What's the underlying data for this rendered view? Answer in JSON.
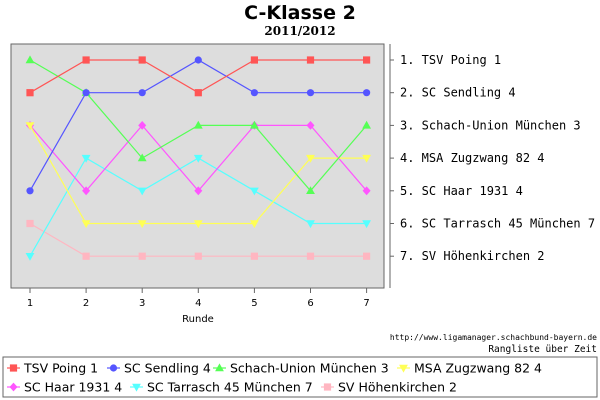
{
  "chart_data": {
    "type": "line",
    "title": "C-Klasse 2",
    "subtitle": "2011/2012",
    "xlabel": "Runde",
    "ylabel": "",
    "x": [
      1,
      2,
      3,
      4,
      5,
      6,
      7
    ],
    "x_ticks": [
      "1",
      "2",
      "3",
      "4",
      "5",
      "6",
      "7"
    ],
    "ylim": [
      1,
      7
    ],
    "y_inverted": true,
    "grid": false,
    "legend_position": "bottom",
    "rank_labels": [
      "1. TSV Poing 1",
      "2. SC Sendling 4",
      "3. Schach-Union München 3",
      "4. MSA Zugzwang 82 4",
      "5. SC Haar 1931 4",
      "6. SC Tarrasch 45 München 7",
      "7. SV Höhenkirchen 2"
    ],
    "series": [
      {
        "name": "TSV Poing 1",
        "color": "#ff5555",
        "marker": "square",
        "values": [
          2,
          1,
          1,
          2,
          1,
          1,
          1
        ]
      },
      {
        "name": "SC Sendling 4",
        "color": "#5555ff",
        "marker": "circle",
        "values": [
          5,
          2,
          2,
          1,
          2,
          2,
          2
        ]
      },
      {
        "name": "Schach-Union München 3",
        "color": "#55ff55",
        "marker": "triangle-up",
        "values": [
          1,
          2,
          4,
          3,
          3,
          5,
          3
        ]
      },
      {
        "name": "MSA Zugzwang 82 4",
        "color": "#ffff55",
        "marker": "triangle-down",
        "values": [
          3,
          6,
          6,
          6,
          6,
          4,
          4
        ]
      },
      {
        "name": "SC Haar 1931 4",
        "color": "#ff55ff",
        "marker": "diamond",
        "values": [
          3,
          5,
          3,
          5,
          3,
          3,
          5
        ]
      },
      {
        "name": "SC Tarrasch 45 München 7",
        "color": "#55ffff",
        "marker": "triangle-down",
        "values": [
          7,
          4,
          5,
          4,
          5,
          6,
          6
        ]
      },
      {
        "name": "SV Höhenkirchen 2",
        "color": "#ffb6c1",
        "marker": "square",
        "values": [
          6,
          7,
          7,
          7,
          7,
          7,
          7
        ]
      }
    ]
  },
  "footer": {
    "source": "http://www.ligamanager.schachbund-bayern.de",
    "caption": "Rangliste über Zeit"
  }
}
